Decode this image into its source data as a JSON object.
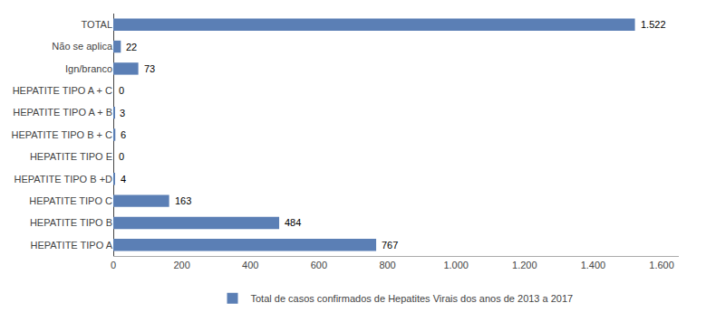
{
  "chart_data": {
    "type": "bar",
    "orientation": "horizontal",
    "categories": [
      "HEPATITE TIPO A",
      "HEPATITE TIPO B",
      "HEPATITE TIPO C",
      "HEPATITE TIPO B +D",
      "HEPATITE TIPO E",
      "HEPATITE TIPO B + C",
      "HEPATITE TIPO A + B",
      "HEPATITE TIPO A + C",
      "Ign/branco",
      "Não se aplica",
      "TOTAL"
    ],
    "series": [
      {
        "name": "Total de casos confirmados de Hepatites Virais dos anos de 2013 a 2017",
        "color": "#5b7fb5",
        "values": [
          767,
          484,
          163,
          4,
          0,
          6,
          3,
          0,
          73,
          22,
          1522
        ],
        "value_labels": [
          "767",
          "484",
          "163",
          "4",
          "0",
          "6",
          "3",
          "0",
          "73",
          "22",
          "1.522"
        ]
      }
    ],
    "xlim": [
      0,
      1650
    ],
    "xticks": [
      0,
      200,
      400,
      600,
      800,
      {
        "value": 1000,
        "label": "1.000"
      },
      {
        "value": 1200,
        "label": "1.200"
      },
      {
        "value": 1400,
        "label": "1.400"
      },
      {
        "value": 1600,
        "label": "1.600"
      }
    ],
    "data_labels": true,
    "legend": "bottom",
    "grid": false
  }
}
